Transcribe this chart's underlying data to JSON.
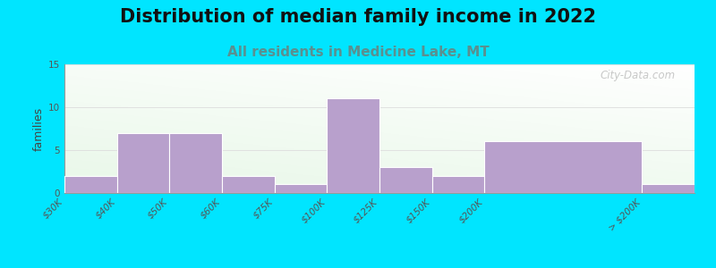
{
  "title": "Distribution of median family income in 2022",
  "subtitle": "All residents in Medicine Lake, MT",
  "ylabel": "families",
  "categories": [
    "$30K",
    "$40K",
    "$50K",
    "$60K",
    "$75K",
    "$100K",
    "$125K",
    "$150K",
    "$200K",
    "> $200K"
  ],
  "values": [
    2,
    7,
    7,
    2,
    1,
    11,
    3,
    2,
    6,
    1
  ],
  "bar_color": "#b8a0cc",
  "bar_edge_color": "#ffffff",
  "ylim": [
    0,
    15
  ],
  "yticks": [
    0,
    5,
    10,
    15
  ],
  "background_outer": "#00e5ff",
  "title_fontsize": 15,
  "subtitle_fontsize": 11,
  "subtitle_color": "#5a9090",
  "ylabel_fontsize": 9,
  "tick_label_fontsize": 7.5,
  "watermark": "City-Data.com",
  "grid_color": "#dddddd",
  "bin_widths": [
    1,
    1,
    1,
    1,
    1,
    1,
    1,
    1,
    3,
    1
  ]
}
